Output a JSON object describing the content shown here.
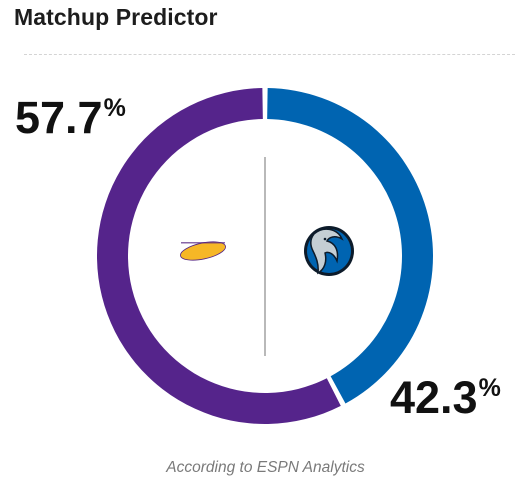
{
  "widget": {
    "title": "Matchup Predictor",
    "caption": "According to ESPN Analytics"
  },
  "chart_data": {
    "type": "pie",
    "title": "Matchup Predictor",
    "series": [
      {
        "label": "57.7",
        "value": 57.7,
        "unit": "%",
        "color": "#55248b",
        "logo": "lakers-logo-icon"
      },
      {
        "label": "42.3",
        "value": 42.3,
        "unit": "%",
        "color": "#0064b1",
        "logo": "mavericks-logo-icon"
      }
    ],
    "ring_background": "#ffffff",
    "divider_color": "#b9b9b9"
  }
}
